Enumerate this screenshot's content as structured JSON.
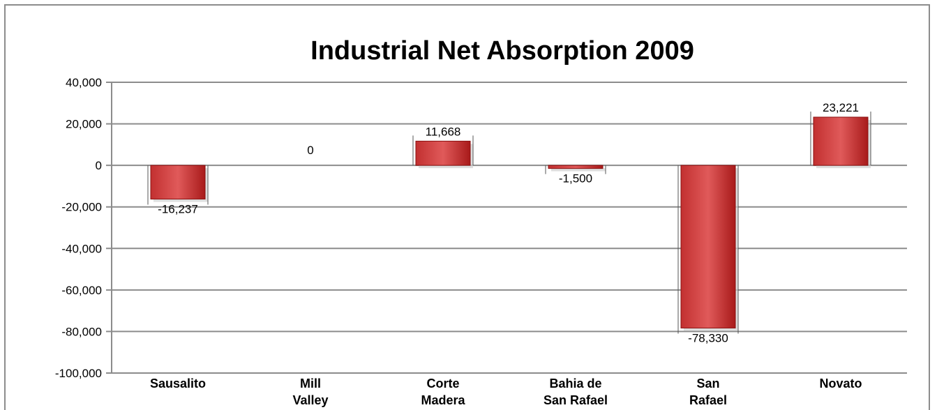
{
  "chart_data": {
    "type": "bar",
    "title": "Industrial Net Absorption 2009",
    "xlabel": "",
    "ylabel": "",
    "categories": [
      [
        "Sausalito"
      ],
      [
        "Mill",
        "Valley"
      ],
      [
        "Corte",
        "Madera"
      ],
      [
        "Bahia de",
        "San Rafael"
      ],
      [
        "San",
        "Rafael"
      ],
      [
        "Novato"
      ]
    ],
    "values": [
      -16237,
      0,
      11668,
      -1500,
      -78330,
      23221
    ],
    "value_labels": [
      "-16,237",
      "0",
      "11,668",
      "-1,500",
      "-78,330",
      "23,221"
    ],
    "ylim": [
      -100000,
      40000
    ],
    "yticks": [
      40000,
      20000,
      0,
      -20000,
      -40000,
      -60000,
      -80000,
      -100000
    ],
    "ytick_labels": [
      "40,000",
      "20,000",
      "0",
      "-20,000",
      "-40,000",
      "-60,000",
      "-80,000",
      "-100,000"
    ],
    "grid": true,
    "legend": "none",
    "colors": {
      "bar_light": "#e05a5a",
      "bar_dark": "#9e1616",
      "grid": "#8c8c8c"
    }
  }
}
